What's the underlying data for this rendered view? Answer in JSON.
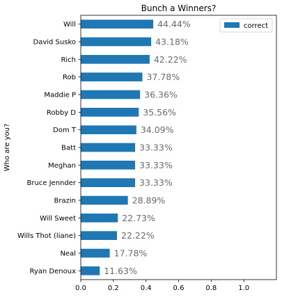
{
  "chart_data": {
    "type": "bar",
    "orientation": "horizontal",
    "title": "Bunch a Winners?",
    "ylabel": "Who are you?",
    "xlabel": "",
    "xlim": [
      0,
      1.2
    ],
    "xticks": [
      "0.0",
      "0.2",
      "0.4",
      "0.6",
      "0.8",
      "1.0"
    ],
    "xtick_values": [
      0,
      0.2,
      0.4,
      0.6,
      0.8,
      1.0
    ],
    "grid": false,
    "legend": {
      "placement": "top-right",
      "entries": [
        "correct"
      ]
    },
    "categories": [
      "Will",
      "David Susko",
      "Rich",
      "Rob",
      "Maddie P",
      "Robby D",
      "Dom T",
      "Batt",
      "Meghan",
      "Bruce Jennder",
      "Brazin",
      "Will Sweet",
      "Wills Thot (liane)",
      "Neal",
      "Ryan Denoux"
    ],
    "series": [
      {
        "name": "correct",
        "values": [
          0.4444,
          0.4318,
          0.4222,
          0.3778,
          0.3636,
          0.3556,
          0.3409,
          0.3333,
          0.3333,
          0.3333,
          0.2889,
          0.2273,
          0.2222,
          0.1778,
          0.1163
        ],
        "labels": [
          "44.44%",
          "43.18%",
          "42.22%",
          "37.78%",
          "36.36%",
          "35.56%",
          "34.09%",
          "33.33%",
          "33.33%",
          "33.33%",
          "28.89%",
          "22.73%",
          "22.22%",
          "17.78%",
          "11.63%"
        ]
      }
    ],
    "colors": {
      "bar": "#1f77b4",
      "data_label": "#6b6b6b",
      "axis": "#000000"
    }
  }
}
